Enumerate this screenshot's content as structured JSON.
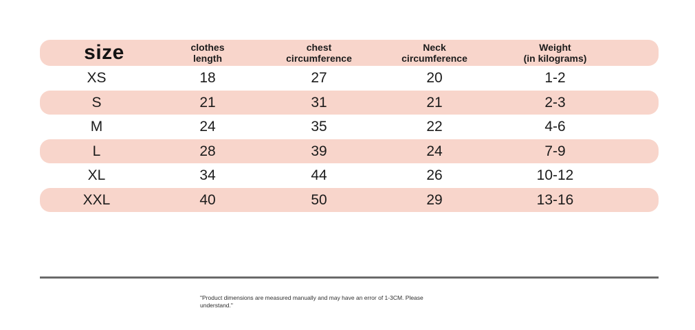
{
  "chart_data": {
    "type": "table",
    "title": "size",
    "columns": [
      "size",
      "clothes length",
      "chest circumference",
      "Neck circumference",
      "Weight (in kilograms)"
    ],
    "rows": [
      [
        "XS",
        "18",
        "27",
        "20",
        "1-2"
      ],
      [
        "S",
        "21",
        "31",
        "21",
        "2-3"
      ],
      [
        "M",
        "24",
        "35",
        "22",
        "4-6"
      ],
      [
        "L",
        "28",
        "39",
        "24",
        "7-9"
      ],
      [
        "XL",
        "34",
        "44",
        "26",
        "10-12"
      ],
      [
        "XXL",
        "40",
        "50",
        "29",
        "13-16"
      ]
    ],
    "footnote": "\"Product dimensions are measured manually and may have an error of 1-3CM. Please understand.\"",
    "layout_hints": {
      "striped_rows": "alternating pink bands",
      "band_color": "#f8d5cb",
      "divider_color": "#6a6a6a"
    }
  },
  "header": {
    "size_label": "size",
    "col_clothes_length": "clothes\nlength",
    "col_chest_circumference": "chest\ncircumference",
    "col_neck_circumference": "Neck\ncircumference",
    "col_weight": "Weight\n(in kilograms)"
  },
  "footnote_display": "\"Product dimensions are measured manually and may have an error of 1-3CM. Please\nunderstand.\"",
  "colors": {
    "band": "#f8d5cb",
    "text": "#1b1b1b",
    "divider": "#6a6a6a"
  }
}
